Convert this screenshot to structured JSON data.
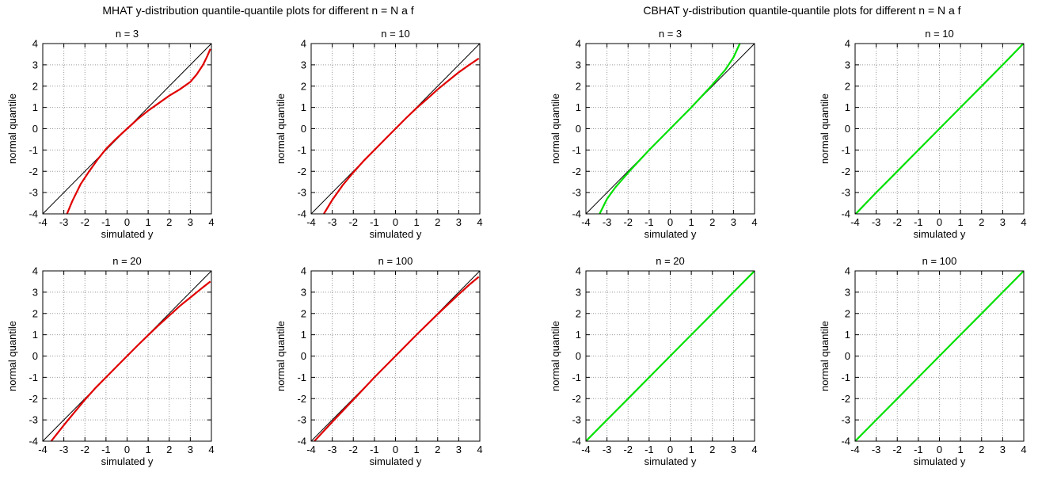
{
  "figure": {
    "titles": [
      "MHAT y-distribution quantile-quantile plots for different n = N a f",
      "CBHAT y-distribution quantile-quantile plots for different n = N a f"
    ]
  },
  "colors": {
    "mhat": "#e00000",
    "cbhat": "#00e000",
    "reference": "#000000",
    "grid": "#999999"
  },
  "chart_data": [
    {
      "type": "line",
      "group": "MHAT",
      "title": "n = 3",
      "xlabel": "simulated y",
      "ylabel": "normal quantile",
      "xlim": [
        -4,
        4
      ],
      "ylim": [
        -4,
        4
      ],
      "xticks": [
        -4,
        -3,
        -2,
        -1,
        0,
        1,
        2,
        3,
        4
      ],
      "yticks": [
        -4,
        -3,
        -2,
        -1,
        0,
        1,
        2,
        3,
        4
      ],
      "grid": true,
      "series": [
        {
          "color": "#000000",
          "x": [
            -4,
            4
          ],
          "y": [
            -4,
            4
          ]
        },
        {
          "color": "#e00000",
          "x": [
            -2.85,
            -2.6,
            -2.2,
            -1.8,
            -1.4,
            -1.0,
            -0.6,
            -0.3,
            0.0,
            0.5,
            1.0,
            1.5,
            2.0,
            2.5,
            3.0,
            3.3,
            3.6,
            3.8,
            3.95
          ],
          "y": [
            -4.0,
            -3.4,
            -2.6,
            -2.0,
            -1.45,
            -0.95,
            -0.55,
            -0.27,
            0.0,
            0.45,
            0.85,
            1.2,
            1.55,
            1.85,
            2.2,
            2.55,
            3.0,
            3.4,
            3.75
          ]
        }
      ]
    },
    {
      "type": "line",
      "group": "MHAT",
      "title": "n = 10",
      "xlabel": "simulated y",
      "ylabel": "normal quantile",
      "xlim": [
        -4,
        4
      ],
      "ylim": [
        -4,
        4
      ],
      "xticks": [
        -4,
        -3,
        -2,
        -1,
        0,
        1,
        2,
        3,
        4
      ],
      "yticks": [
        -4,
        -3,
        -2,
        -1,
        0,
        1,
        2,
        3,
        4
      ],
      "grid": true,
      "series": [
        {
          "color": "#000000",
          "x": [
            -4,
            4
          ],
          "y": [
            -4,
            4
          ]
        },
        {
          "color": "#e00000",
          "x": [
            -3.4,
            -3.0,
            -2.5,
            -2.0,
            -1.5,
            -1.0,
            -0.5,
            0.0,
            0.5,
            1.0,
            1.5,
            2.0,
            2.5,
            3.0,
            3.5,
            3.95
          ],
          "y": [
            -4.0,
            -3.35,
            -2.65,
            -2.05,
            -1.5,
            -1.0,
            -0.5,
            0.0,
            0.5,
            0.97,
            1.4,
            1.85,
            2.25,
            2.65,
            3.0,
            3.3
          ]
        }
      ]
    },
    {
      "type": "line",
      "group": "CBHAT",
      "title": "n = 3",
      "xlabel": "simulated y",
      "ylabel": "normal quantile",
      "xlim": [
        -4,
        4
      ],
      "ylim": [
        -4,
        4
      ],
      "xticks": [
        -4,
        -3,
        -2,
        -1,
        0,
        1,
        2,
        3,
        4
      ],
      "yticks": [
        -4,
        -3,
        -2,
        -1,
        0,
        1,
        2,
        3,
        4
      ],
      "grid": true,
      "series": [
        {
          "color": "#000000",
          "x": [
            -4,
            4
          ],
          "y": [
            -4,
            4
          ]
        },
        {
          "color": "#00e000",
          "x": [
            -3.35,
            -3.0,
            -2.6,
            -2.2,
            -1.8,
            -1.0,
            0.0,
            1.0,
            1.8,
            2.2,
            2.6,
            3.0,
            3.3
          ],
          "y": [
            -4.0,
            -3.3,
            -2.75,
            -2.3,
            -1.85,
            -1.0,
            0.0,
            1.0,
            1.85,
            2.3,
            2.75,
            3.35,
            4.0
          ]
        }
      ]
    },
    {
      "type": "line",
      "group": "CBHAT",
      "title": "n = 10",
      "xlabel": "simulated y",
      "ylabel": "normal quantile",
      "xlim": [
        -4,
        4
      ],
      "ylim": [
        -4,
        4
      ],
      "xticks": [
        -4,
        -3,
        -2,
        -1,
        0,
        1,
        2,
        3,
        4
      ],
      "yticks": [
        -4,
        -3,
        -2,
        -1,
        0,
        1,
        2,
        3,
        4
      ],
      "grid": true,
      "series": [
        {
          "color": "#000000",
          "x": [
            -4,
            4
          ],
          "y": [
            -4,
            4
          ]
        },
        {
          "color": "#00e000",
          "x": [
            -3.95,
            -3.0,
            -2.0,
            -1.0,
            0.0,
            1.0,
            2.0,
            3.0,
            3.95
          ],
          "y": [
            -3.98,
            -3.0,
            -2.0,
            -1.0,
            0.0,
            1.0,
            2.0,
            3.0,
            3.97
          ]
        }
      ]
    },
    {
      "type": "line",
      "group": "MHAT",
      "title": "n = 20",
      "xlabel": "simulated y",
      "ylabel": "normal quantile",
      "xlim": [
        -4,
        4
      ],
      "ylim": [
        -4,
        4
      ],
      "xticks": [
        -4,
        -3,
        -2,
        -1,
        0,
        1,
        2,
        3,
        4
      ],
      "yticks": [
        -4,
        -3,
        -2,
        -1,
        0,
        1,
        2,
        3,
        4
      ],
      "grid": true,
      "series": [
        {
          "color": "#000000",
          "x": [
            -4,
            4
          ],
          "y": [
            -4,
            4
          ]
        },
        {
          "color": "#e00000",
          "x": [
            -3.6,
            -3.0,
            -2.5,
            -2.0,
            -1.5,
            -1.0,
            -0.5,
            0.0,
            0.5,
            1.0,
            1.5,
            2.0,
            2.5,
            3.0,
            3.5,
            3.95
          ],
          "y": [
            -4.0,
            -3.25,
            -2.65,
            -2.05,
            -1.5,
            -1.0,
            -0.5,
            0.0,
            0.5,
            0.98,
            1.45,
            1.9,
            2.35,
            2.75,
            3.15,
            3.5
          ]
        }
      ]
    },
    {
      "type": "line",
      "group": "MHAT",
      "title": "n = 100",
      "xlabel": "simulated y",
      "ylabel": "normal quantile",
      "xlim": [
        -4,
        4
      ],
      "ylim": [
        -4,
        4
      ],
      "xticks": [
        -4,
        -3,
        -2,
        -1,
        0,
        1,
        2,
        3,
        4
      ],
      "yticks": [
        -4,
        -3,
        -2,
        -1,
        0,
        1,
        2,
        3,
        4
      ],
      "grid": true,
      "series": [
        {
          "color": "#000000",
          "x": [
            -4,
            4
          ],
          "y": [
            -4,
            4
          ]
        },
        {
          "color": "#e00000",
          "x": [
            -3.85,
            -3.0,
            -2.0,
            -1.0,
            0.0,
            1.0,
            2.0,
            3.0,
            3.5,
            3.95
          ],
          "y": [
            -4.0,
            -3.1,
            -2.05,
            -1.0,
            0.0,
            1.0,
            1.97,
            2.9,
            3.35,
            3.72
          ]
        }
      ]
    },
    {
      "type": "line",
      "group": "CBHAT",
      "title": "n = 20",
      "xlabel": "simulated y",
      "ylabel": "normal quantile",
      "xlim": [
        -4,
        4
      ],
      "ylim": [
        -4,
        4
      ],
      "xticks": [
        -4,
        -3,
        -2,
        -1,
        0,
        1,
        2,
        3,
        4
      ],
      "yticks": [
        -4,
        -3,
        -2,
        -1,
        0,
        1,
        2,
        3,
        4
      ],
      "grid": true,
      "series": [
        {
          "color": "#000000",
          "x": [
            -4,
            4
          ],
          "y": [
            -4,
            4
          ]
        },
        {
          "color": "#00e000",
          "x": [
            -3.97,
            -3.0,
            -2.0,
            -1.0,
            0.0,
            1.0,
            2.0,
            3.0,
            3.97
          ],
          "y": [
            -3.97,
            -3.0,
            -2.0,
            -1.0,
            0.0,
            1.0,
            2.0,
            3.0,
            3.97
          ]
        }
      ]
    },
    {
      "type": "line",
      "group": "CBHAT",
      "title": "n = 100",
      "xlabel": "simulated y",
      "ylabel": "normal quantile",
      "xlim": [
        -4,
        4
      ],
      "ylim": [
        -4,
        4
      ],
      "xticks": [
        -4,
        -3,
        -2,
        -1,
        0,
        1,
        2,
        3,
        4
      ],
      "yticks": [
        -4,
        -3,
        -2,
        -1,
        0,
        1,
        2,
        3,
        4
      ],
      "grid": true,
      "series": [
        {
          "color": "#000000",
          "x": [
            -4,
            4
          ],
          "y": [
            -4,
            4
          ]
        },
        {
          "color": "#00e000",
          "x": [
            -3.97,
            -3.0,
            -2.0,
            -1.0,
            0.0,
            1.0,
            2.0,
            3.0,
            3.97
          ],
          "y": [
            -3.97,
            -3.0,
            -2.0,
            -1.0,
            0.0,
            1.0,
            2.0,
            3.0,
            3.97
          ]
        }
      ]
    }
  ]
}
